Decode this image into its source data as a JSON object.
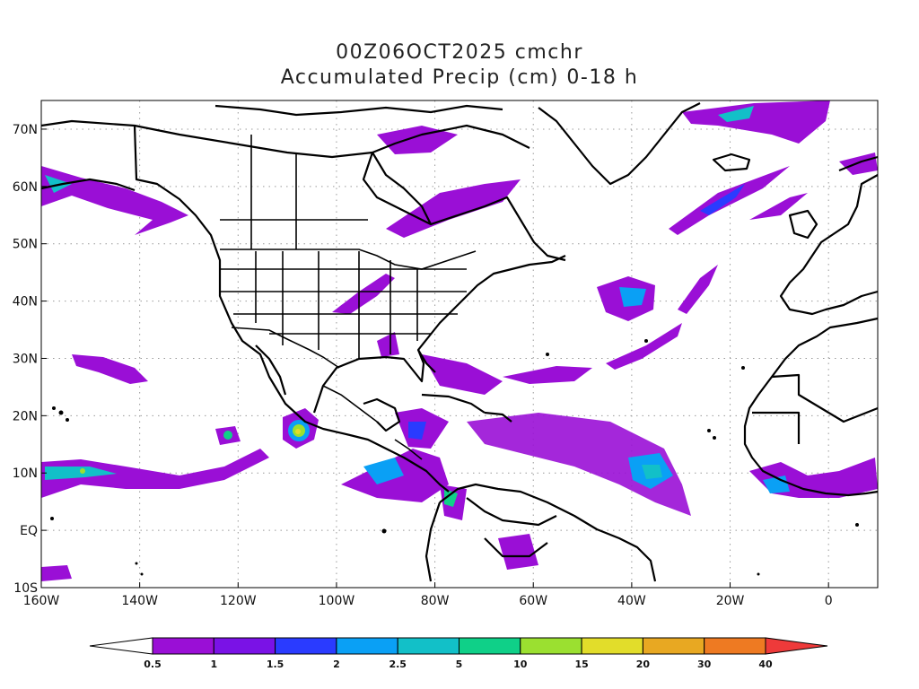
{
  "header": {
    "line1": "00Z06OCT2025 cmchr",
    "line2": "Accumulated Precip (cm) 0-18 h"
  },
  "map": {
    "lon_range": [
      -160,
      10
    ],
    "lat_range": [
      -10,
      75
    ],
    "grid": true,
    "lon_ticks": [
      "160W",
      "140W",
      "120W",
      "100W",
      "80W",
      "60W",
      "40W",
      "20W",
      "0"
    ],
    "lat_ticks": [
      "70N",
      "60N",
      "50N",
      "40N",
      "30N",
      "20N",
      "10N",
      "EQ",
      "10S"
    ]
  },
  "colorbar": {
    "labels": [
      "0.5",
      "1",
      "1.5",
      "2",
      "2.5",
      "5",
      "10",
      "15",
      "20",
      "30",
      "40"
    ],
    "colors": [
      "#9a0fd6",
      "#7a12e6",
      "#2a3bff",
      "#0aa0f5",
      "#12c0c8",
      "#0fd088",
      "#9be030",
      "#e2dd2a",
      "#e8a822",
      "#ee7a22",
      "#ee3a3a"
    ]
  }
}
